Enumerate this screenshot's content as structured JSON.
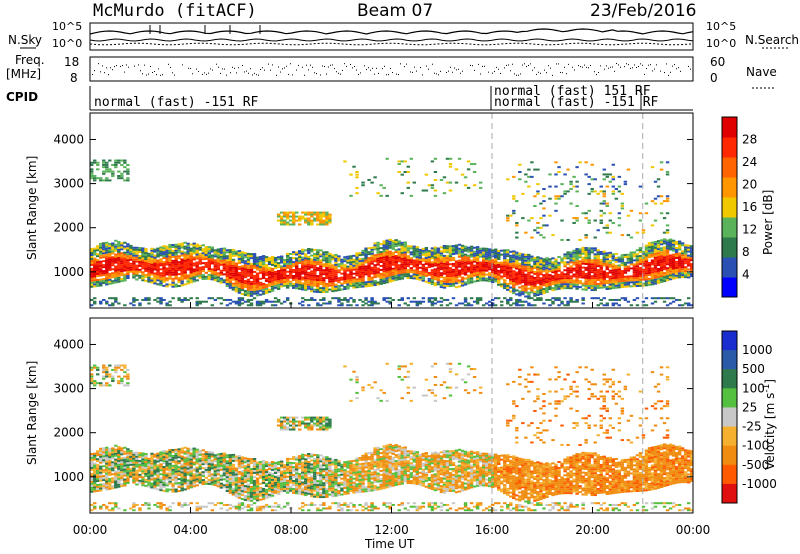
{
  "header": {
    "station": "McMurdo (fitACF)",
    "beam": "Beam 07",
    "date": "23/Feb/2016"
  },
  "strip": {
    "nsky_label": "N.Sky",
    "nsearch_label": "N.Search",
    "freq_label_1": "Freq.",
    "freq_label_2": "[MHz]",
    "nave_label": "Nave",
    "cpid_label": "CPID",
    "noise_ticks": [
      "10^5",
      "10^0"
    ],
    "noise_ticks_right": [
      "10^5",
      "10^0"
    ],
    "freq_ticks": [
      "18",
      "8"
    ],
    "nave_ticks": [
      "60",
      "0"
    ],
    "cpid_segments": [
      {
        "label": "normal (fast) -151 RF",
        "start": "00:00",
        "end": "16:00"
      },
      {
        "label": "normal (fast) 151 RF",
        "start": "16:00",
        "end": "22:00"
      },
      {
        "label": "normal (fast) -151 RF",
        "start": "16:00",
        "end": "22:00"
      }
    ]
  },
  "colors": {
    "power_scale": [
      "#0000ff",
      "#2a50b4",
      "#2f7a4c",
      "#5ab35a",
      "#f0c800",
      "#ff9600",
      "#ff6400",
      "#ff2800",
      "#e00000"
    ],
    "velocity_scale": [
      "#1a2ed0",
      "#2a5aa8",
      "#2f7a4c",
      "#55c040",
      "#c8c8c8",
      "#f5b030",
      "#f08c10",
      "#ff5a00",
      "#e01010"
    ]
  },
  "chart_data": [
    {
      "type": "heatmap",
      "name": "power",
      "ylabel": "Slant Range [km]",
      "xlabel": "",
      "x_ticks": [
        "00:00",
        "04:00",
        "08:00",
        "12:00",
        "16:00",
        "20:00",
        "00:00"
      ],
      "xlim_hours": [
        0,
        24
      ],
      "y_ticks": [
        1000,
        2000,
        3000,
        4000
      ],
      "ylim": [
        180,
        4600
      ],
      "colorbar": {
        "label": "Power [dB]",
        "ticks": [
          "4",
          "8",
          "12",
          "16",
          "20",
          "24",
          "28"
        ],
        "range": [
          0,
          32
        ]
      },
      "bands": [
        {
          "from_h": 0,
          "to_h": 24,
          "center_km": 1000,
          "half_width_km": 260,
          "level": "strong"
        },
        {
          "from_h": 0,
          "to_h": 24,
          "center_km": 1450,
          "half_width_km": 150,
          "level": "medium"
        },
        {
          "from_h": 7.4,
          "to_h": 9.6,
          "center_km": 2200,
          "half_width_km": 180,
          "level": "patch"
        },
        {
          "from_h": 0,
          "to_h": 1.5,
          "center_km": 3300,
          "half_width_km": 250,
          "level": "patch"
        },
        {
          "from_h": 17,
          "to_h": 23,
          "center_km": 2600,
          "half_width_km": 900,
          "level": "sparse"
        }
      ],
      "dashed_markers_hours": [
        16,
        22
      ]
    },
    {
      "type": "heatmap",
      "name": "velocity",
      "ylabel": "Slant Range [km]",
      "xlabel": "Time UT",
      "x_ticks": [
        "00:00",
        "04:00",
        "08:00",
        "12:00",
        "16:00",
        "20:00",
        "00:00"
      ],
      "xlim_hours": [
        0,
        24
      ],
      "y_ticks": [
        1000,
        2000,
        3000,
        4000
      ],
      "ylim": [
        180,
        4600
      ],
      "colorbar": {
        "label": "Velocity [m s^-1]",
        "ticks": [
          "1000",
          "500",
          "100",
          "25",
          "-25",
          "-100",
          "-500",
          "-1000"
        ]
      },
      "dashed_markers_hours": [
        16,
        22
      ]
    }
  ]
}
